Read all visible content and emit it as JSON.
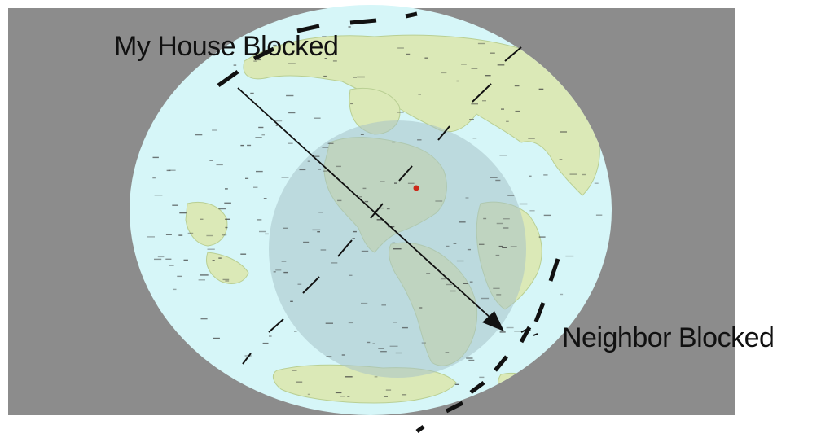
{
  "annotations": {
    "my_house": "My House Blocked",
    "neighbor": "Neighbor Blocked"
  },
  "colors": {
    "background": "#8c8c8c",
    "ocean": "#d6f6f8",
    "land": "#dbe9b7",
    "visibility_zone": "#a7c3c8",
    "dashes": "#111111",
    "arrow": "#111111",
    "location_marker": "#cc2a1a"
  },
  "icons": {
    "location_marker": "red-dot-icon",
    "arrowhead": "arrowhead-icon"
  }
}
